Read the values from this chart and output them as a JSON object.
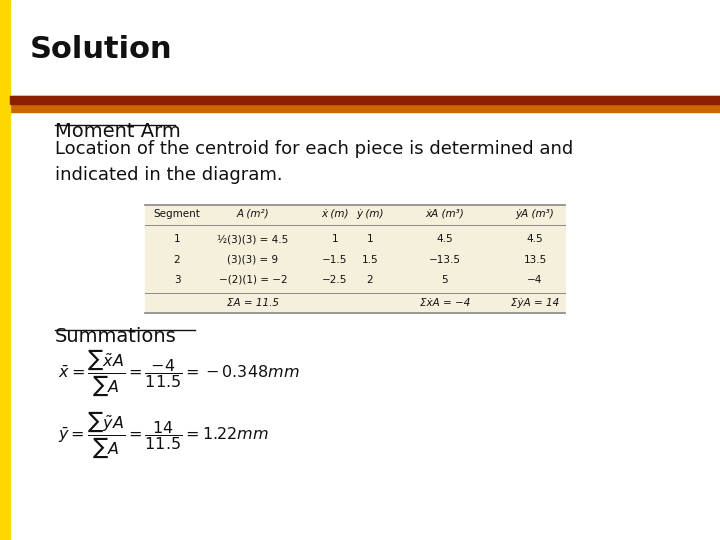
{
  "title": "Solution",
  "background_color": "#ffffff",
  "left_bar_color": "#FFD700",
  "orange_bar_color1": "#CC6600",
  "orange_bar_color2": "#8B2000",
  "section1_heading": "Moment Arm",
  "section1_text": "Location of the centroid for each piece is determined and\nindicated in the diagram.",
  "section2_heading": "Summations",
  "title_fontsize": 22,
  "body_fontsize": 13,
  "heading_fontsize": 14,
  "table_bg": "#F5F0DC",
  "table_border": "#888888",
  "text_color": "#111111"
}
